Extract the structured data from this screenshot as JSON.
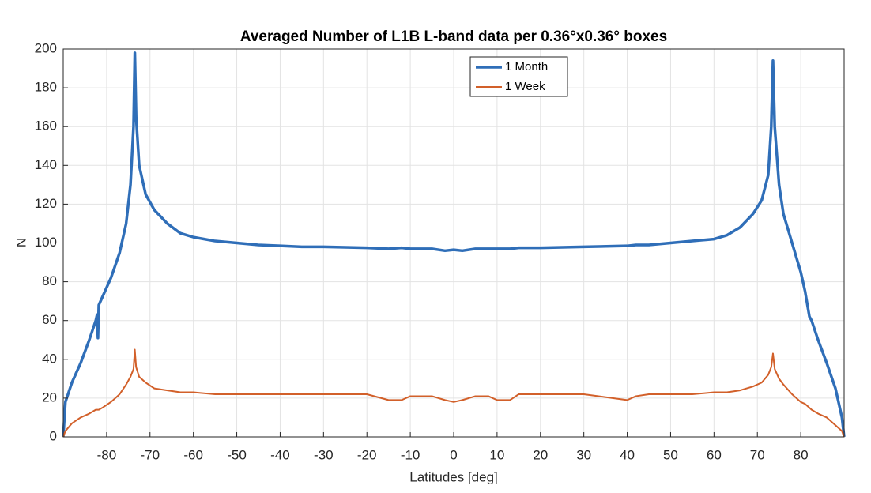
{
  "chart_data": {
    "type": "line",
    "title": "Averaged Number of L1B L-band data per 0.36°x0.36° boxes",
    "xlabel": "Latitudes [deg]",
    "ylabel": "N",
    "xlim": [
      -90,
      90
    ],
    "ylim": [
      0,
      200
    ],
    "xticks": [
      -80,
      -70,
      -60,
      -50,
      -40,
      -30,
      -20,
      -10,
      0,
      10,
      20,
      30,
      40,
      50,
      60,
      70,
      80
    ],
    "yticks": [
      0,
      20,
      40,
      60,
      80,
      100,
      120,
      140,
      160,
      180,
      200
    ],
    "grid": true,
    "legend": "top",
    "x": [
      -90,
      -89.5,
      -88,
      -86,
      -84,
      -82.5,
      -82.2,
      -82,
      -81.8,
      -81,
      -79,
      -77,
      -75.5,
      -74.5,
      -73.8,
      -73.5,
      -73.2,
      -72.5,
      -71,
      -69,
      -66,
      -63,
      -60,
      -55,
      -50,
      -45,
      -40,
      -35,
      -30,
      -20,
      -15,
      -12,
      -10,
      -5,
      -2,
      0,
      2,
      5,
      8,
      10,
      13,
      15,
      20,
      30,
      40,
      42,
      45,
      50,
      55,
      60,
      63,
      66,
      69,
      71,
      72.5,
      73.2,
      73.6,
      74,
      75,
      76,
      78,
      80,
      81,
      82,
      82.5,
      84,
      86,
      88,
      89.5,
      90
    ],
    "series": [
      {
        "name": "1 Month",
        "color": "#2f6eb8",
        "width": 3.5,
        "values": [
          0,
          18,
          28,
          38,
          50,
          60,
          63,
          51,
          68,
          72,
          82,
          95,
          110,
          130,
          160,
          198,
          165,
          140,
          125,
          117,
          110,
          105,
          103,
          101,
          100,
          99,
          98.5,
          98,
          98,
          97.5,
          97,
          97.5,
          97,
          97,
          96,
          96.5,
          96,
          97,
          97,
          97,
          97,
          97.5,
          97.5,
          98,
          98.5,
          99,
          99,
          100,
          101,
          102,
          104,
          108,
          115,
          122,
          135,
          160,
          194,
          160,
          130,
          115,
          100,
          85,
          75,
          62,
          60,
          50,
          38,
          25,
          10,
          0
        ]
      },
      {
        "name": "1 Week",
        "color": "#d2602a",
        "width": 2,
        "values": [
          0,
          3,
          7,
          10,
          12,
          14,
          14,
          14,
          14,
          15,
          18,
          22,
          27,
          31,
          35,
          45,
          36,
          31,
          28,
          25,
          24,
          23,
          23,
          22,
          22,
          22,
          22,
          22,
          22,
          22,
          19,
          19,
          21,
          21,
          19,
          18,
          19,
          21,
          21,
          19,
          19,
          22,
          22,
          22,
          19,
          21,
          22,
          22,
          22,
          23,
          23,
          24,
          26,
          28,
          32,
          36,
          43,
          35,
          30,
          27,
          22,
          18,
          17,
          15,
          14,
          12,
          10,
          6,
          3,
          0
        ]
      }
    ]
  }
}
